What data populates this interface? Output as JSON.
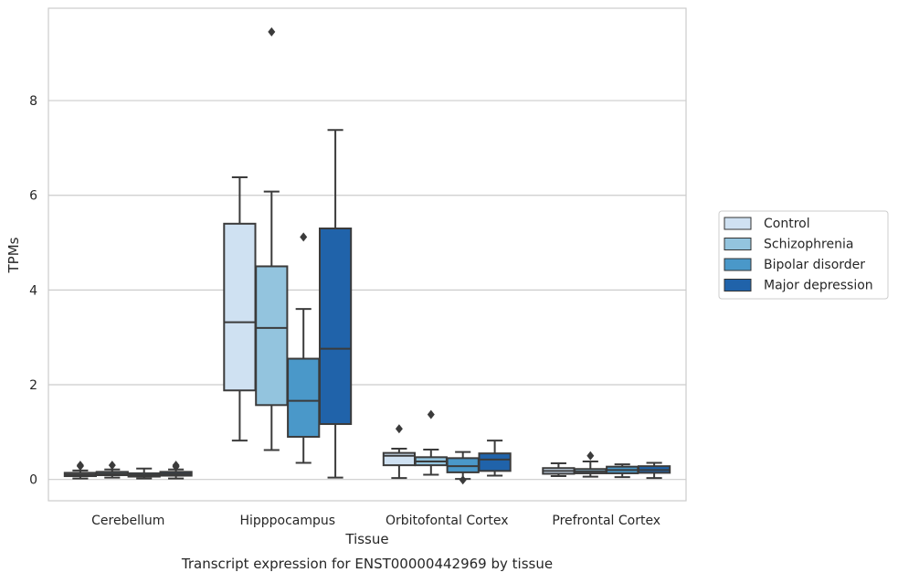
{
  "chart_data": {
    "type": "box",
    "title": "",
    "caption": "Transcript expression for ENST00000442969 by tissue",
    "xlabel": "Tissue",
    "ylabel": "TPMs",
    "ylim": [
      -0.45,
      9.95
    ],
    "yticks": [
      0,
      2,
      4,
      6,
      8
    ],
    "grid": "y-major",
    "legend_position": "right",
    "categories": [
      "Cerebellum",
      "Hipppocampus",
      "Orbitofontal Cortex",
      "Prefrontal Cortex"
    ],
    "series": [
      {
        "name": "Control",
        "color": "#cfe1f2",
        "boxes": [
          {
            "min": 0.02,
            "q1": 0.07,
            "median": 0.1,
            "q3": 0.14,
            "max": 0.19,
            "outliers": [
              0.28,
              0.3
            ]
          },
          {
            "min": 0.82,
            "q1": 1.88,
            "median": 3.32,
            "q3": 5.4,
            "max": 6.38,
            "outliers": []
          },
          {
            "min": 0.03,
            "q1": 0.3,
            "median": 0.5,
            "q3": 0.56,
            "max": 0.65,
            "outliers": [
              1.07
            ]
          },
          {
            "min": 0.07,
            "q1": 0.12,
            "median": 0.18,
            "q3": 0.24,
            "max": 0.34,
            "outliers": []
          }
        ]
      },
      {
        "name": "Schizophrenia",
        "color": "#93c4de",
        "boxes": [
          {
            "min": 0.04,
            "q1": 0.09,
            "median": 0.12,
            "q3": 0.16,
            "max": 0.21,
            "outliers": [
              0.3
            ]
          },
          {
            "min": 0.62,
            "q1": 1.57,
            "median": 3.2,
            "q3": 4.5,
            "max": 6.08,
            "outliers": [
              9.45
            ]
          },
          {
            "min": 0.1,
            "q1": 0.3,
            "median": 0.38,
            "q3": 0.47,
            "max": 0.63,
            "outliers": [
              1.37
            ]
          },
          {
            "min": 0.06,
            "q1": 0.13,
            "median": 0.17,
            "q3": 0.22,
            "max": 0.38,
            "outliers": [
              0.5
            ]
          }
        ]
      },
      {
        "name": "Bipolar disorder",
        "color": "#4a98c9",
        "boxes": [
          {
            "min": 0.02,
            "q1": 0.06,
            "median": 0.09,
            "q3": 0.13,
            "max": 0.23,
            "outliers": []
          },
          {
            "min": 0.35,
            "q1": 0.9,
            "median": 1.66,
            "q3": 2.55,
            "max": 3.6,
            "outliers": [
              5.12
            ]
          },
          {
            "min": 0.01,
            "q1": 0.15,
            "median": 0.28,
            "q3": 0.45,
            "max": 0.58,
            "outliers": [
              -0.01
            ]
          },
          {
            "min": 0.05,
            "q1": 0.13,
            "median": 0.2,
            "q3": 0.27,
            "max": 0.32,
            "outliers": []
          }
        ]
      },
      {
        "name": "Major depression",
        "color": "#2063aa",
        "boxes": [
          {
            "min": 0.02,
            "q1": 0.08,
            "median": 0.12,
            "q3": 0.16,
            "max": 0.21,
            "outliers": [
              0.27,
              0.3
            ]
          },
          {
            "min": 0.04,
            "q1": 1.17,
            "median": 2.76,
            "q3": 5.3,
            "max": 7.38,
            "outliers": []
          },
          {
            "min": 0.08,
            "q1": 0.18,
            "median": 0.42,
            "q3": 0.55,
            "max": 0.82,
            "outliers": []
          },
          {
            "min": 0.03,
            "q1": 0.14,
            "median": 0.2,
            "q3": 0.28,
            "max": 0.35,
            "outliers": []
          }
        ]
      }
    ]
  },
  "colors": {
    "grid": "#cccccc",
    "frame": "#cccccc",
    "box_edge": "#3b3b3b",
    "text": "#262626"
  }
}
